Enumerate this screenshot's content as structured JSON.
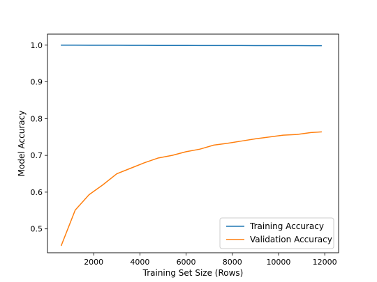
{
  "chart_data": {
    "type": "line",
    "title": "",
    "xlabel": "Training Set Size (Rows)",
    "ylabel": "Model Accuracy",
    "xlim": [
      0,
      12600
    ],
    "ylim": [
      0.435,
      1.03
    ],
    "x_ticks": [
      2000,
      4000,
      6000,
      8000,
      10000,
      12000
    ],
    "y_ticks": [
      0.5,
      0.6,
      0.7,
      0.8,
      0.9,
      1.0
    ],
    "x_tick_labels": [
      "2000",
      "4000",
      "6000",
      "8000",
      "10000",
      "12000"
    ],
    "y_tick_labels": [
      "0.5",
      "0.6",
      "0.7",
      "0.8",
      "0.9",
      "1.0"
    ],
    "grid": false,
    "legend_position": "bottom-right",
    "x": [
      600,
      1200,
      1800,
      2400,
      3000,
      3600,
      4200,
      4800,
      5400,
      6000,
      6600,
      7200,
      7800,
      8400,
      9000,
      9600,
      10200,
      10800,
      11400,
      11850
    ],
    "series": [
      {
        "name": "Training Accuracy",
        "color": "#1f77b4",
        "values": [
          1.0,
          1.0,
          0.9998,
          0.9997,
          0.9996,
          0.9995,
          0.9994,
          0.9993,
          0.9992,
          0.9991,
          0.999,
          0.999,
          0.9989,
          0.9989,
          0.9988,
          0.9988,
          0.9987,
          0.9987,
          0.9986,
          0.9986
        ]
      },
      {
        "name": "Validation Accuracy",
        "color": "#ff7f0e",
        "values": [
          0.455,
          0.551,
          0.593,
          0.62,
          0.65,
          0.665,
          0.68,
          0.693,
          0.7,
          0.71,
          0.717,
          0.728,
          0.733,
          0.739,
          0.745,
          0.75,
          0.755,
          0.757,
          0.762,
          0.764
        ]
      }
    ]
  }
}
